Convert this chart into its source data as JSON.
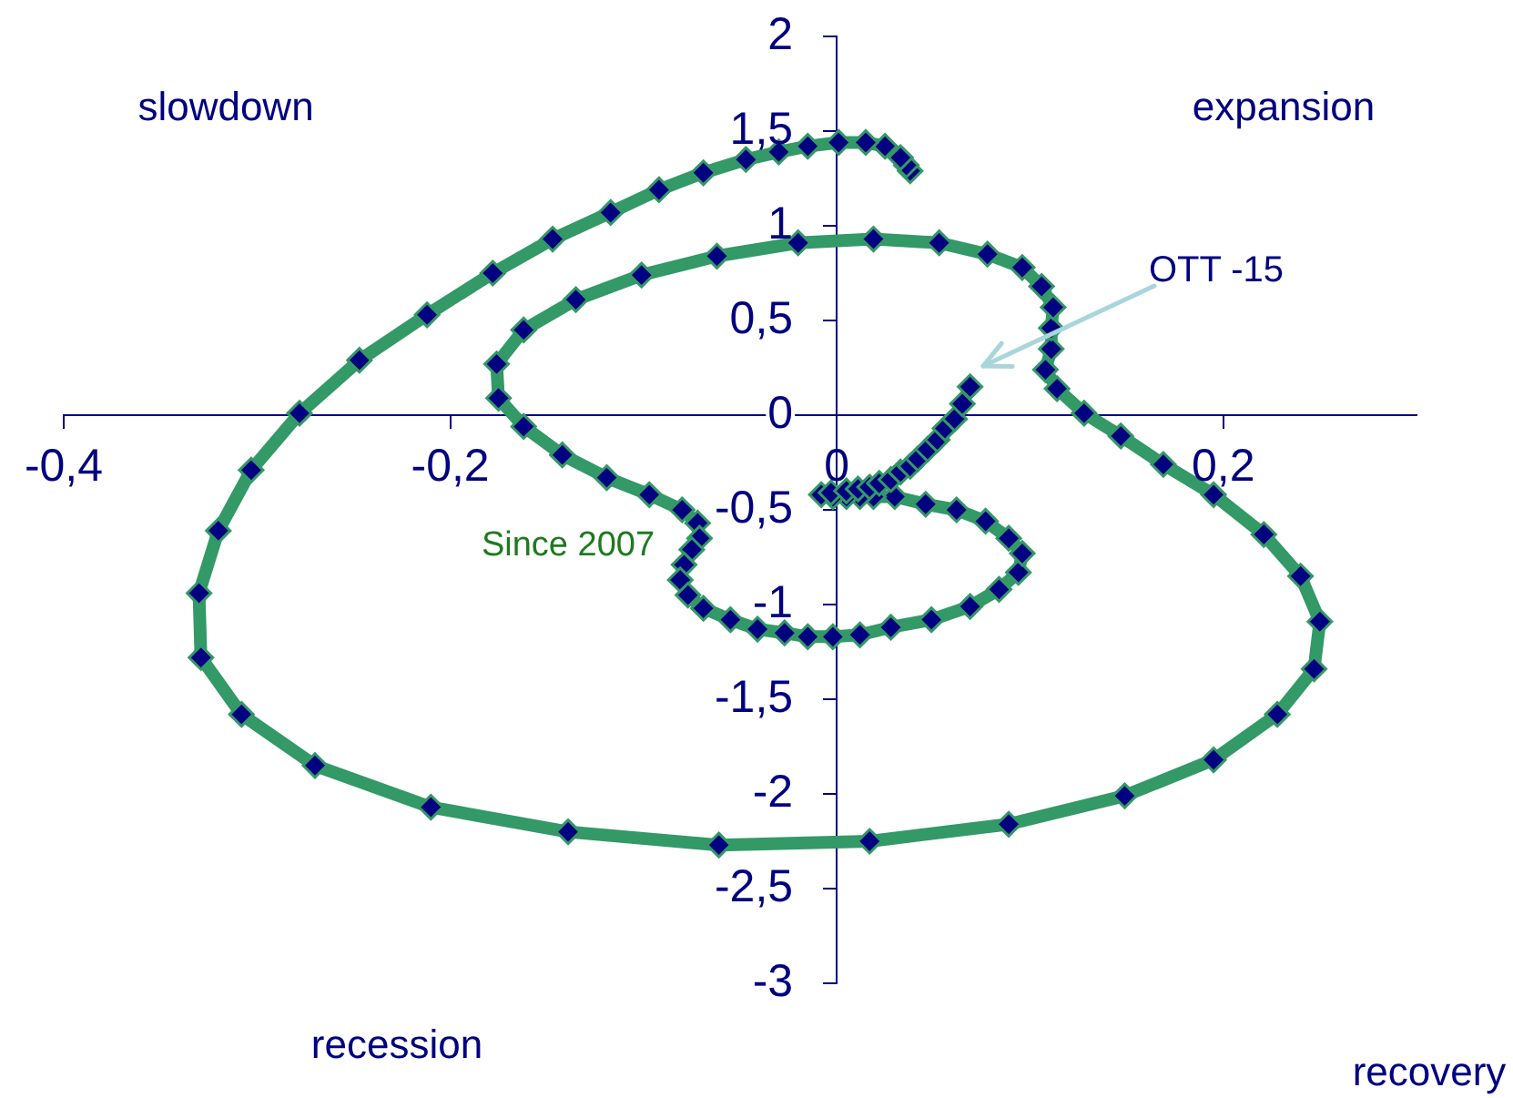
{
  "chart_data": {
    "type": "line",
    "marker": "diamond",
    "line_style": "solid",
    "xlim": [
      -0.4,
      0.3
    ],
    "xticks": [
      {
        "value": -0.4,
        "label": "-0,4"
      },
      {
        "value": -0.2,
        "label": "-0,2"
      },
      0,
      {
        "value": 0.2,
        "label": "0,2"
      }
    ],
    "ylim": [
      -3,
      2
    ],
    "yticks": [
      -3,
      {
        "value": -2.5,
        "label": "-2,5"
      },
      -2,
      {
        "value": -1.5,
        "label": "-1,5"
      },
      -1,
      {
        "value": -0.5,
        "label": "-0,5"
      },
      0,
      {
        "value": 0.5,
        "label": "0,5"
      },
      1,
      {
        "value": 1.5,
        "label": "1,5"
      },
      2
    ],
    "series": [
      {
        "color": "#339966",
        "colors": [
          "#000080",
          "#000080",
          "#000080",
          "#000080",
          "#000080",
          "#000080",
          "#000080",
          "#000080",
          "#000080",
          "#000080",
          "#000080",
          "#000080",
          "#000080",
          "#000080",
          "#000080",
          "#000080",
          "#000080",
          "#000080",
          "#000080",
          "#000080",
          "#000080",
          "#000080",
          "#000080",
          "#000080",
          "#000080",
          "#000080",
          "#000080",
          "#000080",
          "#000080",
          "#000080",
          "#000080",
          "#000080",
          "#000080",
          "#000080",
          "#000080",
          "#000080",
          "#000080",
          "#000080",
          "#000080",
          "#000080",
          "#000080",
          "#000080",
          "#000080",
          "#000080",
          "#000080",
          "#000080",
          "#000080",
          "#000080",
          "#000080",
          "#000080",
          "#000080",
          "#000080",
          "#000080",
          "#000080",
          "#000080",
          "#000080",
          "#000080",
          "#000080",
          "#000080",
          "#000080",
          "#000080",
          "#000080",
          "#000080",
          "#000080",
          "#000080",
          "#000080",
          "#000080",
          "#000080",
          "#000080",
          "#000080",
          "#000080",
          "#000080",
          "#000080",
          "#000080",
          "#000080",
          "#000080",
          "#000080",
          "#000080",
          "#000080",
          "#000080",
          "#000080",
          "#000080",
          "#000080",
          "#000080",
          "#000080",
          "#000080",
          "#000080",
          "#000080",
          "#000080",
          "#000080",
          "#000080",
          "#000080",
          "#000080",
          "#000080",
          "#000080",
          "#000080",
          "#000080",
          "#000080",
          "#000080",
          "#000080",
          "#000080",
          "#000080",
          "#000080",
          "#000080",
          "#000080"
        ],
        "x": [
          0.038,
          0.036,
          0.033,
          0.025,
          0.015,
          0.001,
          -0.015,
          -0.03,
          -0.047,
          -0.069,
          -0.092,
          -0.117,
          -0.147,
          -0.178,
          -0.212,
          -0.247,
          -0.278,
          -0.303,
          -0.32,
          -0.33,
          -0.329,
          -0.308,
          -0.27,
          -0.21,
          -0.139,
          -0.061,
          0.017,
          0.089,
          0.149,
          0.195,
          0.228,
          0.247,
          0.25,
          0.24,
          0.221,
          0.195,
          0.169,
          0.147,
          0.128,
          0.114,
          0.108,
          0.111,
          0.111,
          0.112,
          0.106,
          0.096,
          0.078,
          0.053,
          0.019,
          -0.02,
          -0.062,
          -0.101,
          -0.135,
          -0.162,
          -0.176,
          -0.175,
          -0.162,
          -0.142,
          -0.119,
          -0.097,
          -0.08,
          -0.072,
          -0.071,
          -0.075,
          -0.079,
          -0.081,
          -0.077,
          -0.069,
          -0.055,
          -0.041,
          -0.027,
          -0.015,
          -0.002,
          0.012,
          0.028,
          0.049,
          0.069,
          0.084,
          0.094,
          0.096,
          0.089,
          0.077,
          0.062,
          0.046,
          0.03,
          0.019,
          0.012,
          0.005,
          -0.002,
          -0.008,
          -0.003,
          0.005,
          0.011,
          0.017,
          0.022,
          0.028,
          0.033,
          0.038,
          0.042,
          0.047,
          0.052,
          0.056,
          0.061,
          0.065,
          0.069
        ],
        "values": [
          1.29,
          1.32,
          1.36,
          1.42,
          1.44,
          1.44,
          1.42,
          1.39,
          1.35,
          1.28,
          1.19,
          1.07,
          0.93,
          0.75,
          0.53,
          0.29,
          0.01,
          -0.29,
          -0.61,
          -0.94,
          -1.28,
          -1.58,
          -1.85,
          -2.07,
          -2.2,
          -2.27,
          -2.25,
          -2.16,
          -2.01,
          -1.82,
          -1.58,
          -1.34,
          -1.09,
          -0.85,
          -0.63,
          -0.42,
          -0.26,
          -0.11,
          0.01,
          0.14,
          0.24,
          0.35,
          0.46,
          0.57,
          0.68,
          0.78,
          0.85,
          0.91,
          0.93,
          0.91,
          0.84,
          0.74,
          0.61,
          0.45,
          0.27,
          0.09,
          -0.06,
          -0.21,
          -0.33,
          -0.42,
          -0.5,
          -0.57,
          -0.65,
          -0.71,
          -0.79,
          -0.87,
          -0.95,
          -1.02,
          -1.08,
          -1.13,
          -1.15,
          -1.17,
          -1.17,
          -1.16,
          -1.12,
          -1.08,
          -1.01,
          -0.92,
          -0.83,
          -0.73,
          -0.65,
          -0.56,
          -0.5,
          -0.47,
          -0.43,
          -0.43,
          -0.43,
          -0.43,
          -0.43,
          -0.42,
          -0.41,
          -0.4,
          -0.39,
          -0.38,
          -0.36,
          -0.34,
          -0.3,
          -0.27,
          -0.23,
          -0.18,
          -0.13,
          -0.07,
          -0.02,
          0.06,
          0.15
        ]
      }
    ],
    "annotations": [
      "slowdown",
      "expansion",
      "OTT -15",
      "Since 2007",
      "recession",
      "recovery"
    ]
  }
}
